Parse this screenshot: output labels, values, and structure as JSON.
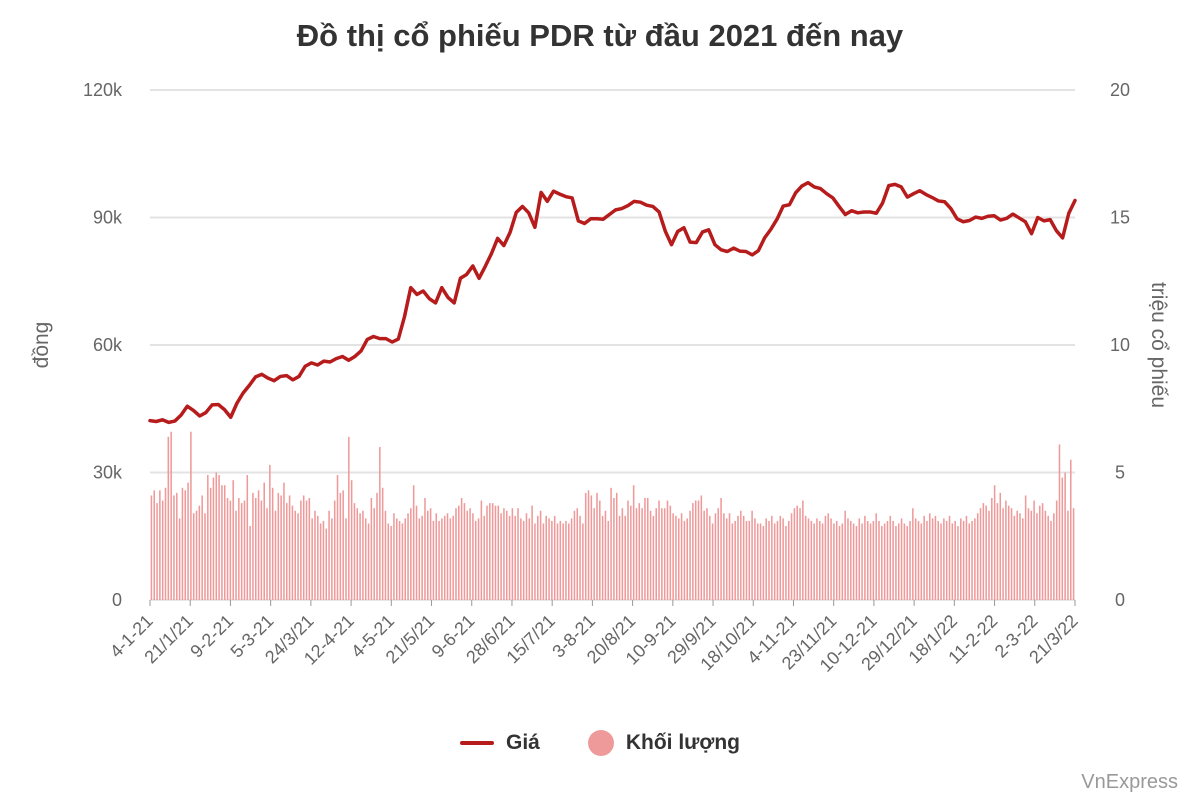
{
  "chart_data": {
    "type": "line+bar",
    "title": "Đồ thị cổ phiếu PDR từ đầu 2021 đến nay",
    "y_left": {
      "label": "đồng",
      "min": 0,
      "max": 120000,
      "ticks": [
        "0",
        "30k",
        "60k",
        "90k",
        "120k"
      ]
    },
    "y_right": {
      "label": "triệu cổ phiếu",
      "min": 0,
      "max": 20,
      "ticks": [
        "0",
        "5",
        "10",
        "15",
        "20"
      ]
    },
    "x_ticks": [
      "4-1-21",
      "21/1/21",
      "9-2-21",
      "5-3-21",
      "24/3/21",
      "12-4-21",
      "4-5-21",
      "21/5/21",
      "9-6-21",
      "28/6/21",
      "15/7/21",
      "3-8-21",
      "20/8/21",
      "10-9-21",
      "29/9/21",
      "18/10/21",
      "4-11-21",
      "23/11/21",
      "10-12-21",
      "29/12/21",
      "18/1/22",
      "11-2-22",
      "2-3-22",
      "21/3/22"
    ],
    "grid": true,
    "legend_position": "bottom",
    "series": [
      {
        "name": "Giá",
        "kind": "line",
        "color": "#b71c1c",
        "values": [
          42200,
          42000,
          42400,
          41800,
          42100,
          43500,
          45600,
          44600,
          43300,
          44100,
          45900,
          46000,
          44800,
          43000,
          46300,
          48700,
          50500,
          52500,
          53100,
          52200,
          51600,
          52600,
          52800,
          51800,
          52600,
          55000,
          55800,
          55300,
          56200,
          56000,
          56800,
          57300,
          56400,
          57300,
          58600,
          61300,
          62000,
          61500,
          61500,
          60700,
          61400,
          66700,
          73500,
          71900,
          72700,
          70900,
          69900,
          73500,
          71200,
          69900,
          75700,
          76600,
          78600,
          75700,
          78500,
          81500,
          85100,
          83400,
          86500,
          91200,
          92600,
          91100,
          87700,
          95900,
          93800,
          96200,
          95500,
          94900,
          94600,
          89200,
          88600,
          89700,
          89700,
          89600,
          90700,
          91800,
          92100,
          92800,
          93800,
          93600,
          92900,
          92600,
          91300,
          86800,
          83600,
          86700,
          87600,
          84200,
          84100,
          86600,
          87100,
          83600,
          82400,
          82000,
          82800,
          82100,
          82000,
          81200,
          82200,
          85200,
          87200,
          89600,
          92700,
          93000,
          95800,
          97400,
          98200,
          97200,
          96800,
          95600,
          94600,
          92600,
          90700,
          91600,
          91100,
          91300,
          91300,
          91000,
          93400,
          97500,
          97800,
          97200,
          94800,
          95600,
          96300,
          95400,
          94700,
          93900,
          93700,
          92100,
          89700,
          89000,
          89300,
          90100,
          89800,
          90300,
          90400,
          89400,
          89800,
          90800,
          89900,
          89000,
          86200,
          90000,
          89200,
          89500,
          86900,
          85200,
          91000,
          94000
        ]
      },
      {
        "name": "Khối lượng",
        "kind": "bar",
        "color": "#ef9a9a",
        "values": [
          4.1,
          4.3,
          3.8,
          4.3,
          3.9,
          4.4,
          6.4,
          6.6,
          4.1,
          4.2,
          3.2,
          4.4,
          4.3,
          4.6,
          6.6,
          3.4,
          3.5,
          3.7,
          4.1,
          3.4,
          4.9,
          4.4,
          4.8,
          5.0,
          4.9,
          4.5,
          4.5,
          4.0,
          3.9,
          4.7,
          3.5,
          4.0,
          3.8,
          3.9,
          4.9,
          2.9,
          4.2,
          4.0,
          4.3,
          3.9,
          4.6,
          3.6,
          5.3,
          4.4,
          3.5,
          4.2,
          4.1,
          4.6,
          3.8,
          4.1,
          3.7,
          3.5,
          3.4,
          3.9,
          4.1,
          3.9,
          4.0,
          3.2,
          3.5,
          3.3,
          3.0,
          3.1,
          2.8,
          3.5,
          3.2,
          3.9,
          4.9,
          4.2,
          4.3,
          3.2,
          6.4,
          4.7,
          3.8,
          3.6,
          3.4,
          3.5,
          3.2,
          3.0,
          4.0,
          3.6,
          4.2,
          6.0,
          4.4,
          3.5,
          3.0,
          2.9,
          3.4,
          3.2,
          3.1,
          3.0,
          3.2,
          3.4,
          3.6,
          4.5,
          3.7,
          3.2,
          3.3,
          4.0,
          3.5,
          3.6,
          3.1,
          3.4,
          3.1,
          3.2,
          3.3,
          3.4,
          3.2,
          3.3,
          3.6,
          3.7,
          4.0,
          3.8,
          3.5,
          3.6,
          3.4,
          3.1,
          3.2,
          3.9,
          3.3,
          3.7,
          3.8,
          3.8,
          3.7,
          3.7,
          3.4,
          3.6,
          3.5,
          3.3,
          3.6,
          3.3,
          3.6,
          3.2,
          3.1,
          3.4,
          3.2,
          3.7,
          3.0,
          3.3,
          3.5,
          3.0,
          3.3,
          3.2,
          3.1,
          3.3,
          3.0,
          3.1,
          3.0,
          3.1,
          3.0,
          3.2,
          3.5,
          3.6,
          3.3,
          3.0,
          4.2,
          4.3,
          4.1,
          3.6,
          4.2,
          3.9,
          3.3,
          3.5,
          3.1,
          4.4,
          4.0,
          4.2,
          3.3,
          3.6,
          3.3,
          3.9,
          3.7,
          4.5,
          3.6,
          3.8,
          3.6,
          4.0,
          4.0,
          3.5,
          3.3,
          3.6,
          3.9,
          3.6,
          3.6,
          3.9,
          3.7,
          3.4,
          3.3,
          3.2,
          3.4,
          3.1,
          3.2,
          3.5,
          3.8,
          3.9,
          3.9,
          4.1,
          3.5,
          3.6,
          3.3,
          3.0,
          3.4,
          3.6,
          4.0,
          3.4,
          3.2,
          3.4,
          3.0,
          3.1,
          3.3,
          3.5,
          3.3,
          3.1,
          3.1,
          3.5,
          3.2,
          3.0,
          3.0,
          2.9,
          3.2,
          3.1,
          3.3,
          3.0,
          3.1,
          3.3,
          3.2,
          2.9,
          3.1,
          3.4,
          3.6,
          3.7,
          3.6,
          3.9,
          3.3,
          3.2,
          3.1,
          3.0,
          3.2,
          3.1,
          3.0,
          3.3,
          3.4,
          3.2,
          3.0,
          3.1,
          2.9,
          3.0,
          3.5,
          3.2,
          3.1,
          3.0,
          2.9,
          3.2,
          3.0,
          3.3,
          3.1,
          3.0,
          3.1,
          3.4,
          3.1,
          2.9,
          3.0,
          3.1,
          3.3,
          3.1,
          2.9,
          3.0,
          3.2,
          3.0,
          2.9,
          3.1,
          3.6,
          3.2,
          3.1,
          3.0,
          3.3,
          3.1,
          3.4,
          3.2,
          3.3,
          3.1,
          3.0,
          3.2,
          3.1,
          3.3,
          3.0,
          3.1,
          2.9,
          3.2,
          3.1,
          3.3,
          3.0,
          3.1,
          3.2,
          3.4,
          3.6,
          3.8,
          3.7,
          3.5,
          4.0,
          4.5,
          3.8,
          4.2,
          3.6,
          3.9,
          3.7,
          3.6,
          3.3,
          3.5,
          3.4,
          3.2,
          4.1,
          3.6,
          3.5,
          3.9,
          3.4,
          3.7,
          3.8,
          3.5,
          3.3,
          3.1,
          3.4,
          3.9,
          6.1,
          4.8,
          5.0,
          3.5,
          5.5,
          3.6
        ]
      }
    ]
  },
  "legend": {
    "price_label": "Giá",
    "volume_label": "Khối lượng"
  },
  "credit": "VnExpress"
}
